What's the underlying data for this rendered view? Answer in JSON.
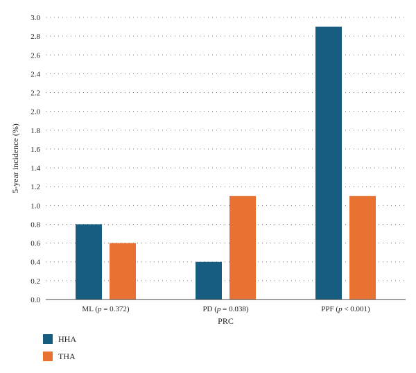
{
  "chart_data": {
    "type": "bar",
    "categories": [
      {
        "parts": [
          {
            "t": "ML ("
          },
          {
            "t": "p",
            "i": true
          },
          {
            "t": " = 0.372)"
          }
        ]
      },
      {
        "parts": [
          {
            "t": "PD ("
          },
          {
            "t": "p",
            "i": true
          },
          {
            "t": " = 0.038)"
          }
        ]
      },
      {
        "parts": [
          {
            "t": "PPF ("
          },
          {
            "t": "p",
            "i": true
          },
          {
            "t": " < 0.001)"
          }
        ]
      }
    ],
    "series": [
      {
        "name": "HHA",
        "color": "#175d82",
        "values": [
          0.8,
          0.4,
          2.9
        ]
      },
      {
        "name": "THA",
        "color": "#e87231",
        "values": [
          0.6,
          1.1,
          1.1
        ]
      }
    ],
    "xlabel": "PRC",
    "ylabel": "5-year incidence (%)",
    "ylim": [
      0,
      3.0
    ],
    "yticks": [
      "0.0",
      "0.2",
      "0.4",
      "0.6",
      "0.8",
      "1.0",
      "1.2",
      "1.4",
      "1.6",
      "1.8",
      "2.0",
      "2.2",
      "2.4",
      "2.6",
      "2.8",
      "3.0"
    ],
    "grid": "horizontal dotted",
    "legend_position": "bottom-left"
  }
}
